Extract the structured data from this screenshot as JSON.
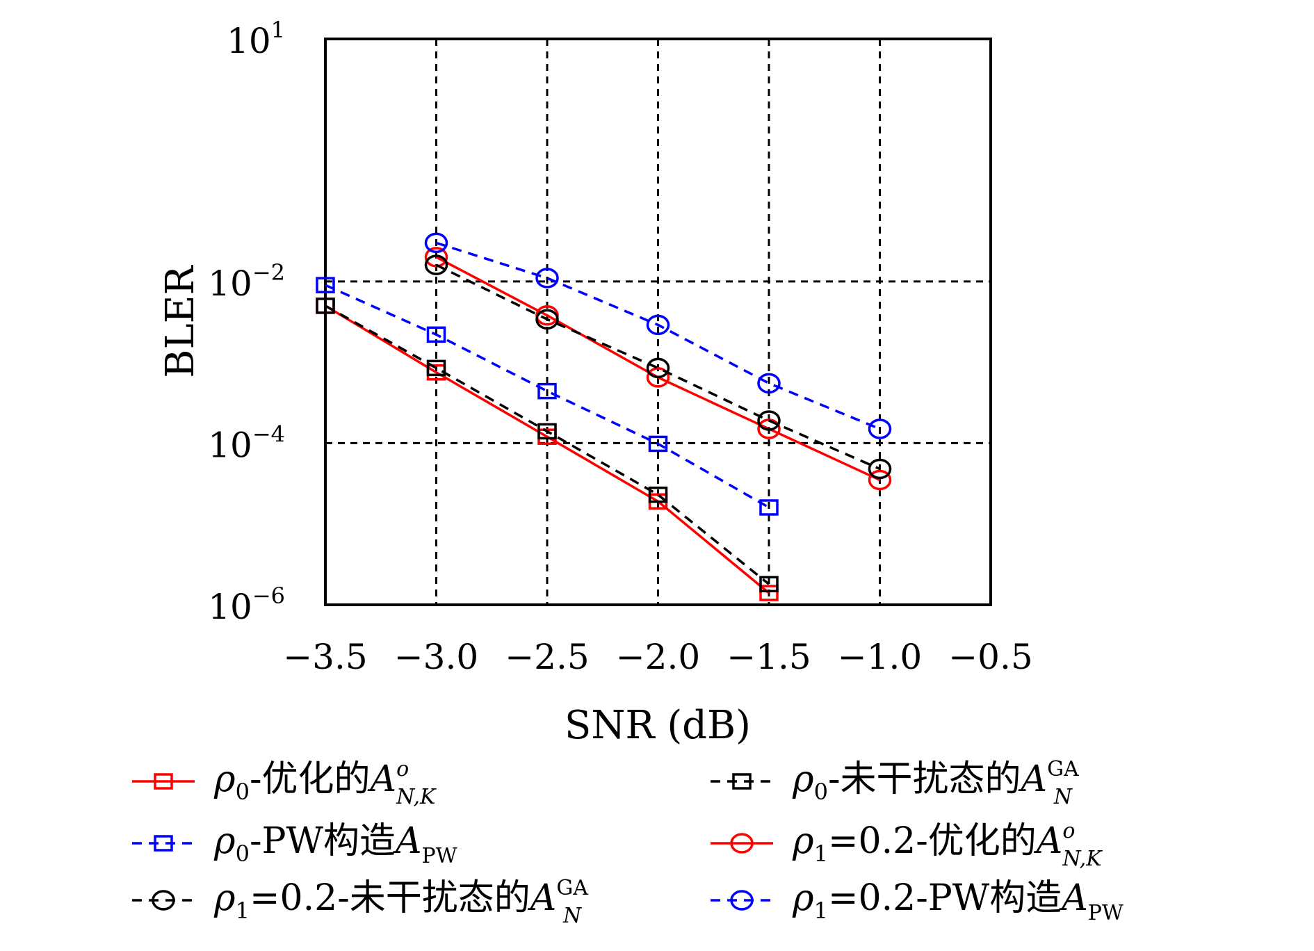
{
  "chart_data": {
    "type": "line",
    "xlabel": "SNR (dB)",
    "ylabel": "BLER",
    "xlim": [
      -3.5,
      -0.5
    ],
    "ylim_log10": [
      -6,
      1
    ],
    "y_scale": "log",
    "grid": true,
    "x_ticks": [
      "−3.5",
      "−3.0",
      "−2.5",
      "−2.0",
      "−1.5",
      "−1.0",
      "−0.5"
    ],
    "y_ticks": [
      {
        "base": "10",
        "exp": "1"
      },
      {
        "base": "10",
        "exp": "−2"
      },
      {
        "base": "10",
        "exp": "−4"
      },
      {
        "base": "10",
        "exp": "−6"
      }
    ],
    "legend_placement": "below",
    "series": [
      {
        "label": "ρ0-优化的A^o_{N,K}",
        "color": "#ff0000",
        "dash": "solid",
        "marker": "square",
        "x": [
          -3.5,
          -3.0,
          -2.5,
          -2.0,
          -1.5
        ],
        "y": [
          0.005,
          0.00075,
          0.00012,
          1.9e-05,
          1.4e-06
        ]
      },
      {
        "label": "ρ0-未干扰态的A^GA_N",
        "color": "#000000",
        "dash": "dashed",
        "marker": "square",
        "x": [
          -3.5,
          -3.0,
          -2.5,
          -2.0,
          -1.5
        ],
        "y": [
          0.005,
          0.00085,
          0.00014,
          2.3e-05,
          1.8e-06
        ]
      },
      {
        "label": "ρ0-PW构造A_PW",
        "color": "#0000ff",
        "dash": "dashed",
        "marker": "square",
        "x": [
          -3.5,
          -3.0,
          -2.5,
          -2.0,
          -1.5
        ],
        "y": [
          0.009,
          0.0022,
          0.00044,
          9.8e-05,
          1.6e-05
        ]
      },
      {
        "label": "ρ1=0.2-优化的A^o_{N,K}",
        "color": "#ff0000",
        "dash": "solid",
        "marker": "circle",
        "x": [
          -3.0,
          -2.5,
          -2.0,
          -1.5,
          -1.0
        ],
        "y": [
          0.02,
          0.0038,
          0.00065,
          0.00015,
          3.5e-05
        ]
      },
      {
        "label": "ρ1=0.2-未干扰态的A^GA_N",
        "color": "#000000",
        "dash": "dashed",
        "marker": "circle",
        "x": [
          -3.0,
          -2.5,
          -2.0,
          -1.5,
          -1.0
        ],
        "y": [
          0.016,
          0.0034,
          0.00085,
          0.00019,
          4.8e-05
        ]
      },
      {
        "label": "ρ1=0.2-PW构造A_PW",
        "color": "#0000ff",
        "dash": "dashed",
        "marker": "circle",
        "x": [
          -3.0,
          -2.5,
          -2.0,
          -1.5,
          -1.0
        ],
        "y": [
          0.03,
          0.011,
          0.0029,
          0.00055,
          0.00015
        ]
      }
    ]
  },
  "legend": [
    {
      "rho": "ρ",
      "rho_sub": "0",
      "text": "-优化的",
      "A": "A",
      "sup": "o",
      "sub": "N,K"
    },
    {
      "rho": "ρ",
      "rho_sub": "0",
      "text": "-未干扰态的",
      "A": "A",
      "sup": "GA",
      "sub": "N"
    },
    {
      "rho": "ρ",
      "rho_sub": "0",
      "text": "-PW构造",
      "A": "A",
      "sup": "",
      "sub": "PW"
    },
    {
      "rho": "ρ",
      "rho_sub": "1",
      "text": "=0.2-优化的",
      "A": "A",
      "sup": "o",
      "sub": "N,K"
    },
    {
      "rho": "ρ",
      "rho_sub": "1",
      "text": "=0.2-未干扰态的",
      "A": "A",
      "sup": "GA",
      "sub": "N"
    },
    {
      "rho": "ρ",
      "rho_sub": "1",
      "text": "=0.2-PW构造",
      "A": "A",
      "sup": "",
      "sub": "PW"
    }
  ]
}
